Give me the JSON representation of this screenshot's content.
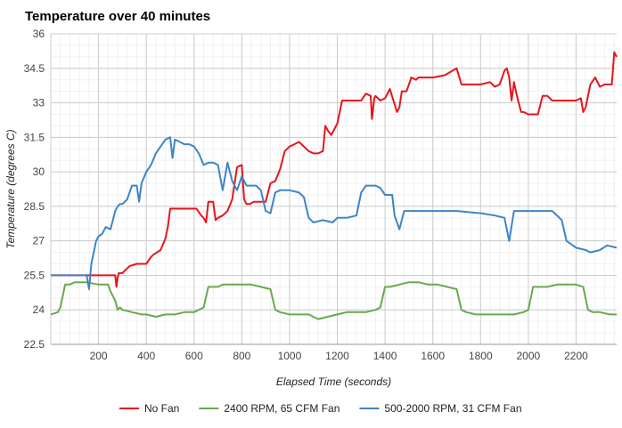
{
  "chart_data": {
    "type": "line",
    "title": "Temperature over 40 minutes",
    "xlabel": "Elapsed Time (seconds)",
    "ylabel": "Temperature (degrees C)",
    "xlim": [
      0,
      2370
    ],
    "ylim": [
      22.5,
      36
    ],
    "x_ticks": [
      200,
      400,
      600,
      800,
      1000,
      1200,
      1400,
      1600,
      1800,
      2000,
      2200
    ],
    "y_ticks": [
      22.5,
      24,
      25.5,
      27,
      28.5,
      30,
      31.5,
      33,
      34.5,
      36
    ],
    "y_tick_labels": [
      "22.5",
      "24",
      "25.5",
      "27",
      "28.5",
      "30",
      "31.5",
      "33",
      "34.5",
      "36"
    ],
    "grid": true,
    "legend": "bottom",
    "series": [
      {
        "name": "No Fan",
        "color": "#e8141b",
        "x": [
          0,
          270,
          275,
          280,
          285,
          300,
          320,
          330,
          360,
          400,
          420,
          430,
          460,
          480,
          490,
          500,
          560,
          610,
          630,
          640,
          650,
          660,
          680,
          690,
          700,
          720,
          740,
          760,
          780,
          800,
          810,
          820,
          835,
          850,
          900,
          920,
          940,
          960,
          980,
          1000,
          1020,
          1040,
          1080,
          1100,
          1120,
          1140,
          1150,
          1160,
          1175,
          1190,
          1200,
          1220,
          1280,
          1300,
          1320,
          1340,
          1345,
          1355,
          1360,
          1380,
          1400,
          1420,
          1450,
          1460,
          1470,
          1490,
          1510,
          1530,
          1540,
          1560,
          1600,
          1650,
          1700,
          1720,
          1760,
          1800,
          1840,
          1860,
          1880,
          1900,
          1910,
          1920,
          1930,
          1940,
          1950,
          1960,
          1970,
          1980,
          2000,
          2040,
          2060,
          2080,
          2100,
          2160,
          2180,
          2200,
          2220,
          2230,
          2240,
          2260,
          2280,
          2300,
          2320,
          2350,
          2360,
          2370
        ],
        "y": [
          25.5,
          25.5,
          25.0,
          25.4,
          25.6,
          25.6,
          25.8,
          25.9,
          26.0,
          26.0,
          26.3,
          26.4,
          26.6,
          27.1,
          27.6,
          28.4,
          28.4,
          28.4,
          28.1,
          28.0,
          27.8,
          28.7,
          28.7,
          27.9,
          28.0,
          28.1,
          28.3,
          28.8,
          30.2,
          30.3,
          28.8,
          28.6,
          28.6,
          28.7,
          28.7,
          29.5,
          29.6,
          30.1,
          30.9,
          31.1,
          31.2,
          31.3,
          30.9,
          30.8,
          30.8,
          30.9,
          32.0,
          31.8,
          31.6,
          31.9,
          32.1,
          33.1,
          33.1,
          33.1,
          33.4,
          33.3,
          32.3,
          33.2,
          33.3,
          33.1,
          33.2,
          33.6,
          32.6,
          32.8,
          33.5,
          33.5,
          34.1,
          34.0,
          34.1,
          34.1,
          34.1,
          34.2,
          34.5,
          33.8,
          33.8,
          33.8,
          33.9,
          33.7,
          33.8,
          34.4,
          34.5,
          34.1,
          33.1,
          33.9,
          33.4,
          33.0,
          32.6,
          32.6,
          32.5,
          32.5,
          33.3,
          33.3,
          33.1,
          33.1,
          33.1,
          33.1,
          33.2,
          32.6,
          32.8,
          33.8,
          34.1,
          33.7,
          33.8,
          33.8,
          35.2,
          35.0
        ],
        "legend_label": "No Fan"
      },
      {
        "name": "2400 RPM, 65 CFM Fan",
        "color": "#6aa84f",
        "x": [
          0,
          30,
          40,
          60,
          80,
          100,
          150,
          200,
          240,
          250,
          260,
          270,
          280,
          290,
          300,
          340,
          380,
          400,
          440,
          480,
          520,
          560,
          600,
          620,
          640,
          660,
          680,
          700,
          720,
          760,
          800,
          840,
          880,
          920,
          940,
          960,
          1000,
          1040,
          1080,
          1120,
          1160,
          1200,
          1240,
          1280,
          1320,
          1360,
          1380,
          1400,
          1420,
          1460,
          1500,
          1540,
          1580,
          1620,
          1660,
          1700,
          1720,
          1740,
          1780,
          1820,
          1860,
          1900,
          1940,
          1980,
          2000,
          2020,
          2040,
          2080,
          2120,
          2160,
          2200,
          2230,
          2250,
          2270,
          2300,
          2340,
          2370
        ],
        "y": [
          23.8,
          23.9,
          24.1,
          25.1,
          25.1,
          25.2,
          25.2,
          25.1,
          25.1,
          24.8,
          24.6,
          24.4,
          24.0,
          24.1,
          24.0,
          23.9,
          23.8,
          23.8,
          23.7,
          23.8,
          23.8,
          23.9,
          23.9,
          24.0,
          24.1,
          25.0,
          25.0,
          25.0,
          25.1,
          25.1,
          25.1,
          25.1,
          25.0,
          24.9,
          24.0,
          23.9,
          23.8,
          23.8,
          23.8,
          23.6,
          23.7,
          23.8,
          23.9,
          23.9,
          23.9,
          24.0,
          24.1,
          25.0,
          25.0,
          25.1,
          25.2,
          25.2,
          25.1,
          25.1,
          25.0,
          24.9,
          24.0,
          23.9,
          23.8,
          23.8,
          23.8,
          23.8,
          23.8,
          23.9,
          24.0,
          25.0,
          25.0,
          25.0,
          25.1,
          25.1,
          25.1,
          25.0,
          24.0,
          23.9,
          23.9,
          23.8,
          23.8
        ],
        "legend_label": "2400 RPM, 65 CFM Fan"
      },
      {
        "name": "500-2000 RPM, 31 CFM Fan",
        "color": "#3d85c6",
        "x": [
          0,
          150,
          160,
          170,
          180,
          190,
          200,
          215,
          230,
          250,
          270,
          280,
          290,
          300,
          320,
          340,
          360,
          370,
          380,
          400,
          420,
          440,
          460,
          480,
          500,
          510,
          520,
          540,
          560,
          580,
          600,
          620,
          640,
          660,
          680,
          700,
          720,
          740,
          760,
          780,
          800,
          820,
          840,
          860,
          880,
          900,
          920,
          940,
          960,
          1000,
          1040,
          1060,
          1080,
          1100,
          1140,
          1180,
          1200,
          1240,
          1280,
          1300,
          1320,
          1340,
          1360,
          1380,
          1400,
          1430,
          1440,
          1460,
          1480,
          1600,
          1700,
          1800,
          1860,
          1900,
          1920,
          1940,
          2000,
          2060,
          2100,
          2140,
          2160,
          2200,
          2240,
          2260,
          2300,
          2330,
          2370
        ],
        "y": [
          25.5,
          25.5,
          24.9,
          26.0,
          26.5,
          27.0,
          27.2,
          27.3,
          27.6,
          27.5,
          28.3,
          28.5,
          28.6,
          28.6,
          28.8,
          29.4,
          29.4,
          28.7,
          29.5,
          30.0,
          30.3,
          30.8,
          31.1,
          31.4,
          31.5,
          30.6,
          31.4,
          31.3,
          31.2,
          31.2,
          31.1,
          30.8,
          30.3,
          30.4,
          30.4,
          30.3,
          29.2,
          30.4,
          29.6,
          29.2,
          29.8,
          29.4,
          29.4,
          29.4,
          29.2,
          28.3,
          28.2,
          29.1,
          29.2,
          29.2,
          29.1,
          28.9,
          28.0,
          27.8,
          27.9,
          27.8,
          28.0,
          28.0,
          28.1,
          29.1,
          29.4,
          29.4,
          29.4,
          29.3,
          29.0,
          29.0,
          28.1,
          27.5,
          28.3,
          28.3,
          28.3,
          28.2,
          28.1,
          28.0,
          27.0,
          28.3,
          28.3,
          28.3,
          28.3,
          27.9,
          27.0,
          26.7,
          26.6,
          26.5,
          26.6,
          26.8,
          26.7
        ],
        "legend_label": "500-2000 RPM, 31 CFM Fan"
      }
    ]
  }
}
